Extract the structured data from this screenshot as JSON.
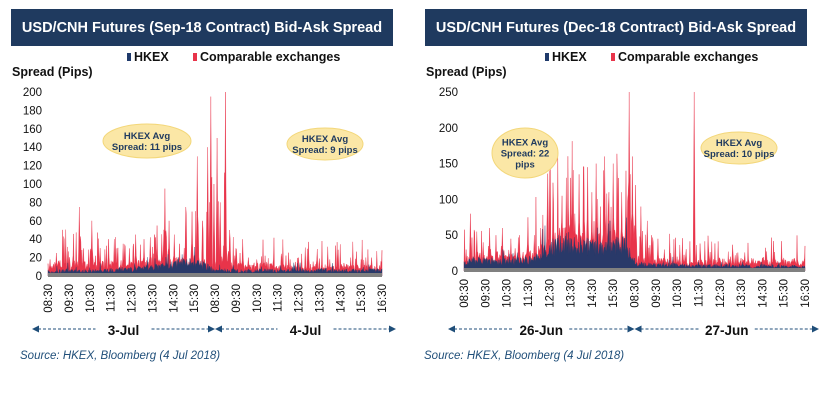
{
  "chart_data": [
    {
      "type": "area",
      "title": "USD/CNH Futures (Sep-18 Contract) Bid-Ask Spread",
      "ylabel": "Spread (Pips)",
      "ylim": [
        0,
        200
      ],
      "yticks": [
        0,
        20,
        40,
        60,
        80,
        100,
        120,
        140,
        160,
        180,
        200
      ],
      "xticks": [
        "08:30",
        "09:30",
        "10:30",
        "11:30",
        "12:30",
        "13:30",
        "14:30",
        "15:30",
        "08:30",
        "09:30",
        "10:30",
        "11:30",
        "12:30",
        "13:30",
        "14:30",
        "15:30",
        "16:30"
      ],
      "days": [
        {
          "label": "3-Jul",
          "start_tick": 0,
          "end_tick": 8
        },
        {
          "label": "4-Jul",
          "start_tick": 8,
          "end_tick": 16
        }
      ],
      "legend": [
        "HKEX",
        "Comparable exchanges"
      ],
      "legend_placement": "top",
      "colors": {
        "hkex": "#1f3a6b",
        "comparable": "#e8344a",
        "baseline": "#808080"
      },
      "series": [
        {
          "name": "HKEX",
          "x_hours": [
            0,
            0.5,
            1,
            1.5,
            2,
            2.5,
            3,
            3.5,
            4,
            4.5,
            5,
            5.5,
            6,
            6.5,
            7,
            7.5,
            8,
            8.5,
            9,
            9.5,
            10,
            10.5,
            11,
            11.5,
            12,
            12.5,
            13,
            13.5,
            14,
            14.5,
            15,
            15.5,
            16
          ],
          "values": [
            4,
            5,
            6,
            5,
            5,
            6,
            6,
            7,
            7,
            8,
            9,
            11,
            12,
            14,
            14,
            12,
            5,
            6,
            6,
            5,
            6,
            6,
            5,
            6,
            6,
            5,
            6,
            6,
            5,
            6,
            5,
            6,
            6
          ]
        },
        {
          "name": "Comparable exchanges",
          "baseline": [
            10,
            12,
            11,
            12,
            10,
            12,
            12,
            13,
            12,
            12,
            13,
            14,
            14,
            15,
            16,
            14,
            12,
            12,
            10,
            10,
            10,
            10,
            9,
            9,
            9,
            9,
            9,
            9,
            9,
            9,
            9,
            9,
            8
          ],
          "spikes": [
            [
              0.1,
              18
            ],
            [
              0.4,
              25
            ],
            [
              0.7,
              20
            ],
            [
              1.2,
              22
            ],
            [
              1.5,
              75
            ],
            [
              1.7,
              30
            ],
            [
              2.1,
              60
            ],
            [
              2.5,
              30
            ],
            [
              2.9,
              40
            ],
            [
              3.3,
              30
            ],
            [
              3.6,
              35
            ],
            [
              3.9,
              30
            ],
            [
              4.2,
              45
            ],
            [
              4.6,
              40
            ],
            [
              4.9,
              42
            ],
            [
              5.2,
              30
            ],
            [
              5.45,
              40
            ],
            [
              5.6,
              95
            ],
            [
              5.8,
              60
            ],
            [
              6.05,
              45
            ],
            [
              6.3,
              35
            ],
            [
              6.6,
              75
            ],
            [
              6.9,
              70
            ],
            [
              7.15,
              130
            ],
            [
              7.4,
              60
            ],
            [
              7.65,
              140
            ],
            [
              7.8,
              195
            ],
            [
              7.95,
              100
            ],
            [
              8.1,
              150
            ],
            [
              8.25,
              80
            ],
            [
              8.5,
              200
            ],
            [
              8.7,
              50
            ],
            [
              9.0,
              30
            ],
            [
              9.2,
              25
            ],
            [
              9.6,
              20
            ],
            [
              10.0,
              18
            ],
            [
              10.4,
              22
            ],
            [
              10.8,
              18
            ],
            [
              11.2,
              20
            ],
            [
              11.6,
              18
            ],
            [
              12.0,
              20
            ],
            [
              12.5,
              18
            ],
            [
              13.0,
              19
            ],
            [
              13.5,
              18
            ],
            [
              14.0,
              18
            ],
            [
              14.5,
              20
            ],
            [
              15.0,
              18
            ],
            [
              15.5,
              20
            ],
            [
              16.0,
              28
            ]
          ]
        }
      ],
      "annotations": [
        {
          "text": "HKEX Avg Spread: 11 pips",
          "lines": [
            "HKEX Avg",
            "Spread: 11 pips"
          ]
        },
        {
          "text": "HKEX Avg Spread: 9 pips",
          "lines": [
            "HKEX Avg",
            "Spread: 9 pips"
          ]
        }
      ],
      "source": "Source: HKEX, Bloomberg (4 Jul 2018)"
    },
    {
      "type": "area",
      "title": "USD/CNH Futures (Dec-18 Contract) Bid-Ask Spread",
      "ylabel": "Spread (Pips)",
      "ylim": [
        0,
        250
      ],
      "yticks": [
        0,
        50,
        100,
        150,
        200,
        250
      ],
      "xticks": [
        "08:30",
        "09:30",
        "10:30",
        "11:30",
        "12:30",
        "13:30",
        "14:30",
        "15:30",
        "08:30",
        "09:30",
        "10:30",
        "11:30",
        "12:30",
        "13:30",
        "14:30",
        "15:30",
        "16:30"
      ],
      "days": [
        {
          "label": "26-Jun",
          "start_tick": 0,
          "end_tick": 8
        },
        {
          "label": "27-Jun",
          "start_tick": 8,
          "end_tick": 16
        }
      ],
      "legend": [
        "HKEX",
        "Comparable exchanges"
      ],
      "legend_placement": "top",
      "colors": {
        "hkex": "#1f3a6b",
        "comparable": "#e8344a",
        "baseline": "#808080"
      },
      "series": [
        {
          "name": "HKEX",
          "x_hours": [
            0,
            0.5,
            1,
            1.5,
            2,
            2.5,
            3,
            3.5,
            4,
            4.5,
            5,
            5.5,
            6,
            6.5,
            7,
            7.5,
            8,
            8.5,
            9,
            9.5,
            10,
            10.5,
            11,
            11.5,
            12,
            12.5,
            13,
            13.5,
            14,
            14.5,
            15,
            15.5,
            16
          ],
          "values": [
            12,
            14,
            15,
            12,
            13,
            14,
            15,
            20,
            30,
            38,
            40,
            35,
            32,
            30,
            35,
            40,
            10,
            9,
            8,
            8,
            8,
            7,
            7,
            7,
            7,
            7,
            7,
            6,
            7,
            7,
            6,
            6,
            6
          ]
        },
        {
          "name": "Comparable exchanges",
          "baseline": [
            15,
            18,
            18,
            16,
            16,
            18,
            20,
            25,
            35,
            42,
            45,
            40,
            38,
            36,
            40,
            45,
            15,
            14,
            13,
            12,
            12,
            11,
            11,
            12,
            12,
            12,
            12,
            11,
            11,
            12,
            12,
            12,
            12
          ],
          "spikes": [
            [
              0.1,
              30
            ],
            [
              0.3,
              80
            ],
            [
              0.6,
              55
            ],
            [
              0.9,
              40
            ],
            [
              1.2,
              60
            ],
            [
              1.5,
              50
            ],
            [
              1.8,
              60
            ],
            [
              2.2,
              45
            ],
            [
              2.6,
              50
            ],
            [
              3.0,
              75
            ],
            [
              3.3,
              50
            ],
            [
              3.6,
              60
            ],
            [
              3.9,
              80
            ],
            [
              4.2,
              70
            ],
            [
              4.4,
              100
            ],
            [
              4.6,
              105
            ],
            [
              4.8,
              100
            ],
            [
              5.0,
              130
            ],
            [
              5.2,
              80
            ],
            [
              5.4,
              135
            ],
            [
              5.6,
              90
            ],
            [
              5.8,
              145
            ],
            [
              6.0,
              110
            ],
            [
              6.2,
              150
            ],
            [
              6.4,
              90
            ],
            [
              6.6,
              160
            ],
            [
              6.8,
              110
            ],
            [
              7.0,
              150
            ],
            [
              7.2,
              130
            ],
            [
              7.4,
              110
            ],
            [
              7.6,
              140
            ],
            [
              7.75,
              250
            ],
            [
              7.9,
              160
            ],
            [
              8.05,
              120
            ],
            [
              8.3,
              90
            ],
            [
              8.6,
              70
            ],
            [
              8.8,
              50
            ],
            [
              9.1,
              45
            ],
            [
              9.4,
              30
            ],
            [
              9.7,
              25
            ],
            [
              10.0,
              20
            ],
            [
              10.4,
              22
            ],
            [
              10.8,
              250
            ],
            [
              11.1,
              20
            ],
            [
              11.5,
              18
            ],
            [
              12.0,
              18
            ],
            [
              12.5,
              20
            ],
            [
              13.0,
              18
            ],
            [
              13.5,
              18
            ],
            [
              14.0,
              18
            ],
            [
              14.5,
              18
            ],
            [
              15.0,
              18
            ],
            [
              15.5,
              18
            ],
            [
              16.0,
              35
            ]
          ]
        }
      ],
      "annotations": [
        {
          "text": "HKEX Avg Spread: 22 pips",
          "lines": [
            "HKEX Avg",
            "Spread: 22",
            "pips"
          ]
        },
        {
          "text": "HKEX Avg Spread: 10 pips",
          "lines": [
            "HKEX Avg",
            "Spread: 10 pips"
          ]
        }
      ],
      "source": "Source: HKEX, Bloomberg (4 Jul 2018)"
    }
  ]
}
